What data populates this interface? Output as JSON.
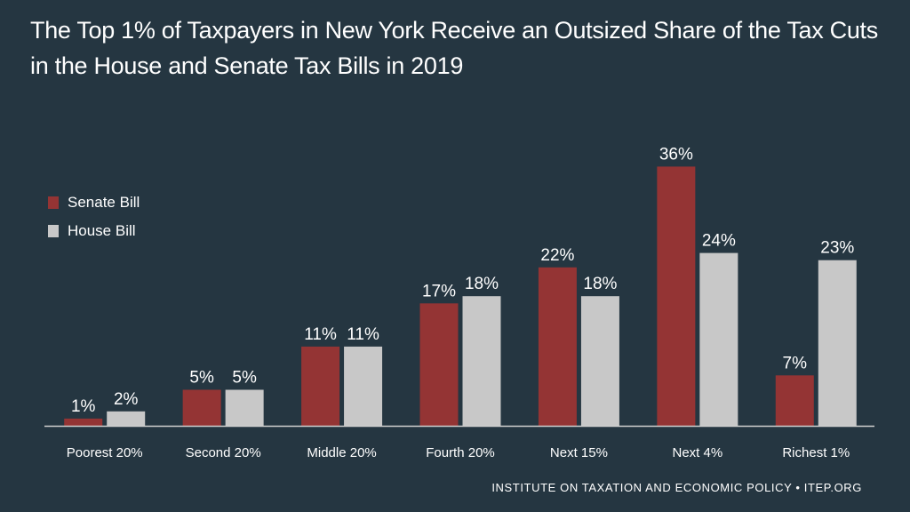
{
  "title_line1": "The Top 1% of Taxpayers in New York Receive an Outsized Share of the Tax Cuts",
  "title_line2": "in the House and Senate Tax Bills in 2019",
  "footer": "INSTITUTE ON TAXATION AND ECONOMIC POLICY • ITEP.ORG",
  "colors": {
    "background": "#253641",
    "senate": "#943434",
    "house": "#c8c8c8",
    "axis": "#d0d0d0"
  },
  "chart_data": {
    "type": "bar",
    "title": "The Top 1% of Taxpayers in New York Receive an Outsized Share of the Tax Cuts in the House and Senate Tax Bills in 2019",
    "categories": [
      "Poorest 20%",
      "Second 20%",
      "Middle 20%",
      "Fourth 20%",
      "Next 15%",
      "Next 4%",
      "Richest 1%"
    ],
    "series": [
      {
        "name": "Senate Bill",
        "values": [
          1,
          5,
          11,
          17,
          22,
          36,
          7
        ],
        "labels": [
          "1%",
          "5%",
          "11%",
          "17%",
          "22%",
          "36%",
          "7%"
        ]
      },
      {
        "name": "House Bill",
        "values": [
          2,
          5,
          11,
          18,
          18,
          24,
          23
        ],
        "labels": [
          "2%",
          "5%",
          "11%",
          "18%",
          "18%",
          "24%",
          "23%"
        ]
      }
    ],
    "xlabel": "",
    "ylabel": "",
    "ylim": [
      0,
      36
    ],
    "grid": false,
    "legend_position": "top-left"
  }
}
